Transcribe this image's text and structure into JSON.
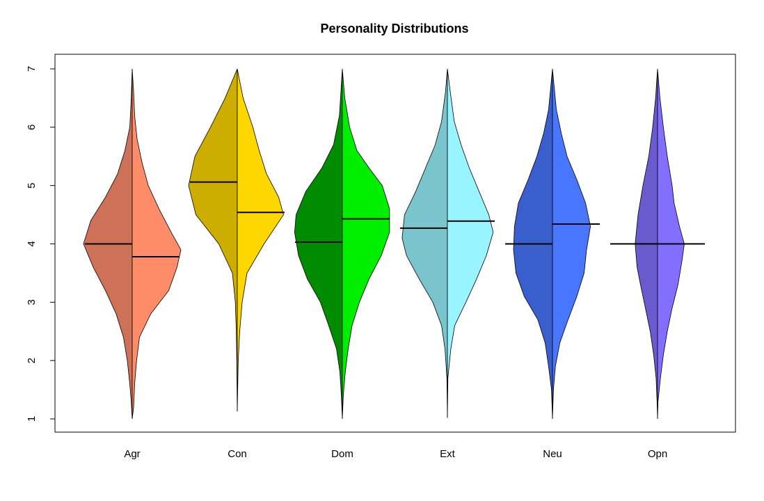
{
  "chart_data": {
    "type": "split-violin",
    "title": "Personality Distributions",
    "xlabel": "",
    "ylabel": "",
    "ylim": [
      1,
      7
    ],
    "yticks": [
      1,
      2,
      3,
      4,
      5,
      6,
      7
    ],
    "grid": false,
    "legend": "none",
    "categories": [
      "Agr",
      "Con",
      "Dom",
      "Ext",
      "Neu",
      "Opn"
    ],
    "series": [
      {
        "name": "Agr",
        "left_color": "#cd7158",
        "right_color": "#ff8c69",
        "min": 1.0,
        "max": 7.0,
        "left_median": 4.0,
        "right_median": 3.78,
        "left_density": [
          [
            1.0,
            0
          ],
          [
            1.3,
            0.02
          ],
          [
            1.6,
            0.05
          ],
          [
            2.0,
            0.1
          ],
          [
            2.4,
            0.18
          ],
          [
            2.8,
            0.33
          ],
          [
            3.2,
            0.55
          ],
          [
            3.6,
            0.8
          ],
          [
            4.0,
            1.0
          ],
          [
            4.4,
            0.85
          ],
          [
            4.8,
            0.55
          ],
          [
            5.2,
            0.3
          ],
          [
            5.6,
            0.15
          ],
          [
            6.0,
            0.05
          ],
          [
            6.5,
            0.02
          ],
          [
            7.0,
            0
          ]
        ],
        "right_density": [
          [
            1.0,
            0
          ],
          [
            1.2,
            0.03
          ],
          [
            1.6,
            0.05
          ],
          [
            2.0,
            0.09
          ],
          [
            2.4,
            0.15
          ],
          [
            2.8,
            0.38
          ],
          [
            3.2,
            0.75
          ],
          [
            3.6,
            0.92
          ],
          [
            3.9,
            1.0
          ],
          [
            4.2,
            0.8
          ],
          [
            4.6,
            0.55
          ],
          [
            5.0,
            0.33
          ],
          [
            5.4,
            0.2
          ],
          [
            5.8,
            0.1
          ],
          [
            6.2,
            0.05
          ],
          [
            6.6,
            0.03
          ],
          [
            7.0,
            0
          ]
        ]
      },
      {
        "name": "Con",
        "left_color": "#cdad00",
        "right_color": "#ffd700",
        "min": 1.13,
        "max": 7.0,
        "left_median": 5.06,
        "right_median": 4.54,
        "left_density": [
          [
            1.13,
            0
          ],
          [
            2.0,
            0.01
          ],
          [
            2.5,
            0.02
          ],
          [
            3.0,
            0.04
          ],
          [
            3.5,
            0.1
          ],
          [
            4.0,
            0.38
          ],
          [
            4.5,
            0.85
          ],
          [
            5.0,
            1.0
          ],
          [
            5.5,
            0.87
          ],
          [
            6.0,
            0.55
          ],
          [
            6.5,
            0.25
          ],
          [
            7.0,
            0
          ]
        ],
        "right_density": [
          [
            1.13,
            0
          ],
          [
            2.0,
            0.02
          ],
          [
            2.5,
            0.05
          ],
          [
            3.0,
            0.1
          ],
          [
            3.5,
            0.2
          ],
          [
            4.0,
            0.55
          ],
          [
            4.5,
            0.95
          ],
          [
            4.8,
            0.85
          ],
          [
            5.2,
            0.6
          ],
          [
            5.6,
            0.45
          ],
          [
            6.0,
            0.32
          ],
          [
            6.5,
            0.12
          ],
          [
            7.0,
            0
          ]
        ]
      },
      {
        "name": "Dom",
        "left_color": "#008b00",
        "right_color": "#00ee00",
        "min": 1.0,
        "max": 7.0,
        "left_median": 4.03,
        "right_median": 4.43,
        "left_density": [
          [
            1.0,
            0
          ],
          [
            1.4,
            0.02
          ],
          [
            1.8,
            0.05
          ],
          [
            2.2,
            0.12
          ],
          [
            2.6,
            0.28
          ],
          [
            3.0,
            0.45
          ],
          [
            3.4,
            0.72
          ],
          [
            3.8,
            0.9
          ],
          [
            4.2,
            0.98
          ],
          [
            4.5,
            0.95
          ],
          [
            4.9,
            0.75
          ],
          [
            5.3,
            0.42
          ],
          [
            5.7,
            0.18
          ],
          [
            6.2,
            0.06
          ],
          [
            7.0,
            0
          ]
        ],
        "right_density": [
          [
            1.0,
            0
          ],
          [
            1.4,
            0.02
          ],
          [
            1.8,
            0.06
          ],
          [
            2.2,
            0.12
          ],
          [
            2.6,
            0.2
          ],
          [
            3.0,
            0.35
          ],
          [
            3.4,
            0.55
          ],
          [
            3.8,
            0.8
          ],
          [
            4.2,
            0.97
          ],
          [
            4.6,
            0.97
          ],
          [
            5.0,
            0.82
          ],
          [
            5.3,
            0.55
          ],
          [
            5.6,
            0.3
          ],
          [
            6.0,
            0.15
          ],
          [
            6.5,
            0.05
          ],
          [
            7.0,
            0
          ]
        ]
      },
      {
        "name": "Ext",
        "left_color": "#7ac5cd",
        "right_color": "#98f5ff",
        "min": 1.02,
        "max": 7.0,
        "left_median": 4.27,
        "right_median": 4.39,
        "left_density": [
          [
            1.02,
            0
          ],
          [
            1.7,
            0.01
          ],
          [
            2.2,
            0.05
          ],
          [
            2.6,
            0.12
          ],
          [
            3.0,
            0.3
          ],
          [
            3.4,
            0.58
          ],
          [
            3.8,
            0.84
          ],
          [
            4.1,
            0.93
          ],
          [
            4.5,
            0.88
          ],
          [
            4.9,
            0.65
          ],
          [
            5.3,
            0.45
          ],
          [
            5.7,
            0.25
          ],
          [
            6.1,
            0.12
          ],
          [
            6.6,
            0.04
          ],
          [
            7.0,
            0
          ]
        ],
        "right_density": [
          [
            1.02,
            0
          ],
          [
            1.7,
            0.01
          ],
          [
            2.2,
            0.07
          ],
          [
            2.6,
            0.15
          ],
          [
            3.0,
            0.38
          ],
          [
            3.4,
            0.6
          ],
          [
            3.8,
            0.8
          ],
          [
            4.2,
            0.94
          ],
          [
            4.5,
            0.85
          ],
          [
            4.9,
            0.65
          ],
          [
            5.3,
            0.45
          ],
          [
            5.7,
            0.28
          ],
          [
            6.1,
            0.14
          ],
          [
            6.6,
            0.06
          ],
          [
            7.0,
            0
          ]
        ]
      },
      {
        "name": "Neu",
        "left_color": "#3a5fcd",
        "right_color": "#4876ff",
        "min": 1.0,
        "max": 7.0,
        "left_median": 4.0,
        "right_median": 4.34,
        "left_density": [
          [
            1.0,
            0
          ],
          [
            1.5,
            0.02
          ],
          [
            1.9,
            0.08
          ],
          [
            2.3,
            0.15
          ],
          [
            2.7,
            0.3
          ],
          [
            3.1,
            0.58
          ],
          [
            3.5,
            0.75
          ],
          [
            3.9,
            0.8
          ],
          [
            4.3,
            0.78
          ],
          [
            4.7,
            0.7
          ],
          [
            5.1,
            0.5
          ],
          [
            5.5,
            0.32
          ],
          [
            5.9,
            0.18
          ],
          [
            6.3,
            0.08
          ],
          [
            7.0,
            0
          ]
        ],
        "right_density": [
          [
            1.0,
            0
          ],
          [
            1.5,
            0.02
          ],
          [
            1.9,
            0.06
          ],
          [
            2.3,
            0.15
          ],
          [
            2.7,
            0.32
          ],
          [
            3.1,
            0.5
          ],
          [
            3.5,
            0.65
          ],
          [
            3.9,
            0.7
          ],
          [
            4.3,
            0.78
          ],
          [
            4.7,
            0.68
          ],
          [
            5.1,
            0.5
          ],
          [
            5.5,
            0.3
          ],
          [
            5.9,
            0.18
          ],
          [
            6.3,
            0.08
          ],
          [
            7.0,
            0
          ]
        ]
      },
      {
        "name": "Opn",
        "left_color": "#6a5acd",
        "right_color": "#836fff",
        "min": 1.0,
        "max": 7.0,
        "left_median": 4.0,
        "right_median": 4.0,
        "left_density": [
          [
            1.0,
            0
          ],
          [
            1.3,
            0.01
          ],
          [
            1.7,
            0.03
          ],
          [
            2.1,
            0.08
          ],
          [
            2.5,
            0.15
          ],
          [
            2.9,
            0.25
          ],
          [
            3.3,
            0.35
          ],
          [
            3.6,
            0.42
          ],
          [
            4.0,
            0.46
          ],
          [
            4.5,
            0.4
          ],
          [
            5.0,
            0.3
          ],
          [
            5.5,
            0.18
          ],
          [
            6.0,
            0.1
          ],
          [
            6.5,
            0.04
          ],
          [
            7.0,
            0
          ]
        ],
        "right_density": [
          [
            1.0,
            0
          ],
          [
            1.3,
            0.01
          ],
          [
            1.7,
            0.06
          ],
          [
            2.1,
            0.12
          ],
          [
            2.5,
            0.2
          ],
          [
            2.9,
            0.3
          ],
          [
            3.3,
            0.42
          ],
          [
            3.7,
            0.5
          ],
          [
            4.0,
            0.55
          ],
          [
            4.3,
            0.45
          ],
          [
            4.7,
            0.34
          ],
          [
            5.0,
            0.3
          ],
          [
            5.5,
            0.2
          ],
          [
            6.0,
            0.12
          ],
          [
            6.5,
            0.05
          ],
          [
            7.0,
            0
          ]
        ]
      }
    ]
  }
}
